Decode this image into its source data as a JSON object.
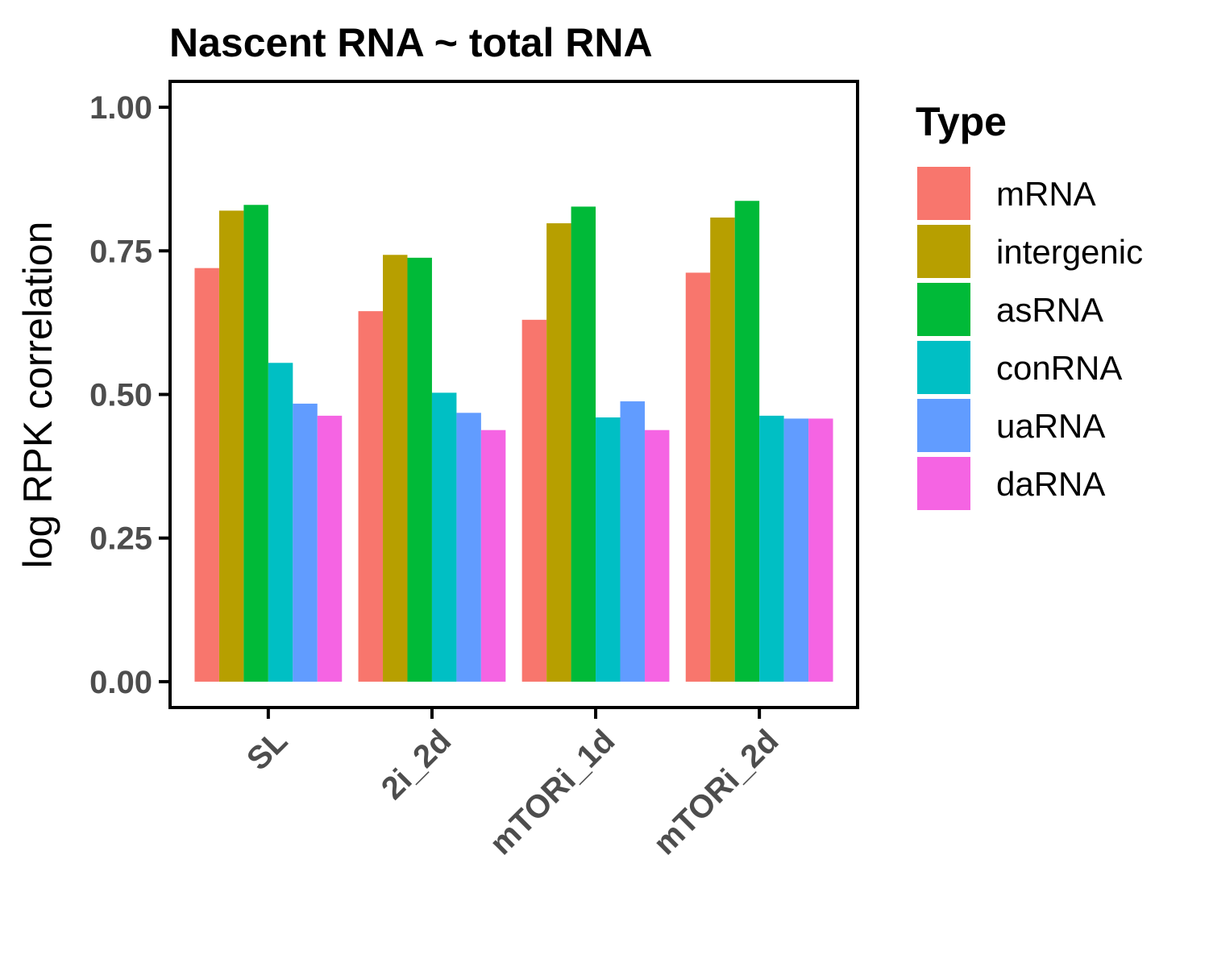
{
  "chart_data": {
    "type": "bar",
    "title": "Nascent RNA ~ total RNA",
    "ylabel": "log RPK correlation",
    "xlabel": "",
    "ylim": [
      -0.045,
      1.045
    ],
    "yticks": [
      "0.00",
      "0.25",
      "0.50",
      "0.75",
      "1.00"
    ],
    "ytick_values": [
      0,
      0.25,
      0.5,
      0.75,
      1.0
    ],
    "categories": [
      "SL",
      "2i_2d",
      "mTORi_1d",
      "mTORi_2d"
    ],
    "legend_title": "Type",
    "legend_position": "right",
    "grid": false,
    "series": [
      {
        "name": "mRNA",
        "color": "#F8766D",
        "values": [
          0.72,
          0.645,
          0.63,
          0.712
        ]
      },
      {
        "name": "intergenic",
        "color": "#B79F00",
        "values": [
          0.82,
          0.743,
          0.798,
          0.808
        ]
      },
      {
        "name": "asRNA",
        "color": "#00BA38",
        "values": [
          0.83,
          0.738,
          0.827,
          0.837
        ]
      },
      {
        "name": "conRNA",
        "color": "#00BFC4",
        "values": [
          0.555,
          0.503,
          0.46,
          0.463
        ]
      },
      {
        "name": "uaRNA",
        "color": "#619CFF",
        "values": [
          0.484,
          0.468,
          0.488,
          0.458
        ]
      },
      {
        "name": "daRNA",
        "color": "#F564E3",
        "values": [
          0.463,
          0.438,
          0.438,
          0.458
        ]
      }
    ]
  }
}
